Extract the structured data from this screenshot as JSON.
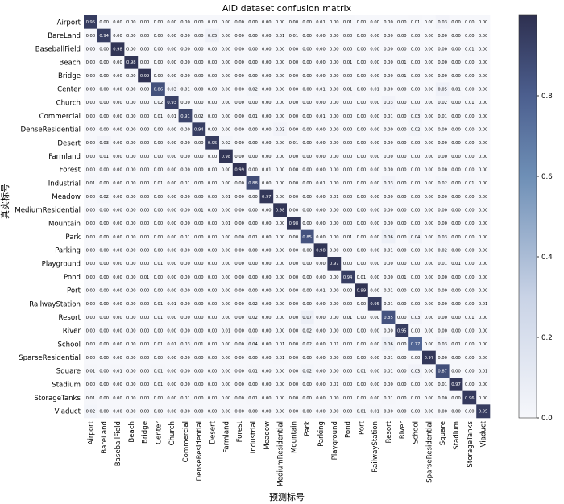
{
  "chart_data": {
    "type": "heatmap",
    "title": "AID dataset confusion matrix",
    "xlabel": "预测标号",
    "ylabel": "真实标号",
    "labels": [
      "Airport",
      "BareLand",
      "BaseballField",
      "Beach",
      "Bridge",
      "Center",
      "Church",
      "Commercial",
      "DenseResidential",
      "Desert",
      "Farmland",
      "Forest",
      "Industrial",
      "Meadow",
      "MediumResidential",
      "Mountain",
      "Park",
      "Parking",
      "Playground",
      "Pond",
      "Port",
      "RailwayStation",
      "Resort",
      "River",
      "School",
      "SparseResidential",
      "Square",
      "Stadium",
      "StorageTanks",
      "Viaduct"
    ],
    "matrix": [
      [
        "0.95",
        "0.00",
        "0.00",
        "0.00",
        "0.00",
        "0.00",
        "0.00",
        "0.00",
        "0.00",
        "0.00",
        "0.00",
        "0.00",
        "0.00",
        "0.00",
        "0.00",
        "0.00",
        "0.00",
        "0.01",
        "0.00",
        "0.01",
        "0.00",
        "0.00",
        "0.00",
        "0.00",
        "0.01",
        "0.00",
        "0.03",
        "0.00",
        "0.00",
        "0.00"
      ],
      [
        "0.00",
        "0.94",
        "0.00",
        "0.00",
        "0.00",
        "0.00",
        "0.00",
        "0.00",
        "0.00",
        "0.05",
        "0.00",
        "0.00",
        "0.00",
        "0.00",
        "0.01",
        "0.01",
        "0.00",
        "0.00",
        "0.00",
        "0.00",
        "0.00",
        "0.00",
        "0.00",
        "0.00",
        "0.00",
        "0.00",
        "0.00",
        "0.00",
        "0.00",
        "0.00"
      ],
      [
        "0.00",
        "0.00",
        "0.98",
        "0.00",
        "0.00",
        "0.00",
        "0.00",
        "0.00",
        "0.00",
        "0.00",
        "0.00",
        "0.00",
        "0.00",
        "0.00",
        "0.00",
        "0.00",
        "0.00",
        "0.00",
        "0.00",
        "0.00",
        "0.00",
        "0.00",
        "0.00",
        "0.00",
        "0.00",
        "0.00",
        "0.00",
        "0.00",
        "0.01",
        "0.00"
      ],
      [
        "0.00",
        "0.00",
        "0.00",
        "0.98",
        "0.00",
        "0.00",
        "0.00",
        "0.00",
        "0.00",
        "0.00",
        "0.00",
        "0.00",
        "0.00",
        "0.00",
        "0.00",
        "0.00",
        "0.00",
        "0.00",
        "0.00",
        "0.01",
        "0.00",
        "0.00",
        "0.00",
        "0.01",
        "0.00",
        "0.00",
        "0.00",
        "0.00",
        "0.00",
        "0.00"
      ],
      [
        "0.00",
        "0.00",
        "0.00",
        "0.00",
        "0.99",
        "0.00",
        "0.00",
        "0.00",
        "0.00",
        "0.00",
        "0.00",
        "0.00",
        "0.00",
        "0.00",
        "0.00",
        "0.00",
        "0.00",
        "0.00",
        "0.00",
        "0.00",
        "0.00",
        "0.00",
        "0.00",
        "0.01",
        "0.00",
        "0.00",
        "0.00",
        "0.00",
        "0.00",
        "0.00"
      ],
      [
        "0.00",
        "0.00",
        "0.00",
        "0.00",
        "0.00",
        "0.86",
        "0.03",
        "0.01",
        "0.00",
        "0.00",
        "0.00",
        "0.00",
        "0.02",
        "0.00",
        "0.00",
        "0.00",
        "0.00",
        "0.01",
        "0.00",
        "0.01",
        "0.00",
        "0.01",
        "0.00",
        "0.00",
        "0.00",
        "0.00",
        "0.05",
        "0.01",
        "0.00",
        "0.00"
      ],
      [
        "0.00",
        "0.00",
        "0.00",
        "0.00",
        "0.00",
        "0.02",
        "0.93",
        "0.00",
        "0.00",
        "0.00",
        "0.00",
        "0.00",
        "0.00",
        "0.00",
        "0.00",
        "0.00",
        "0.00",
        "0.00",
        "0.00",
        "0.00",
        "0.00",
        "0.00",
        "0.03",
        "0.00",
        "0.00",
        "0.00",
        "0.02",
        "0.00",
        "0.01",
        "0.00"
      ],
      [
        "0.00",
        "0.00",
        "0.00",
        "0.00",
        "0.00",
        "0.01",
        "0.01",
        "0.91",
        "0.02",
        "0.00",
        "0.00",
        "0.00",
        "0.01",
        "0.00",
        "0.00",
        "0.00",
        "0.00",
        "0.01",
        "0.00",
        "0.00",
        "0.00",
        "0.00",
        "0.01",
        "0.00",
        "0.03",
        "0.00",
        "0.01",
        "0.00",
        "0.00",
        "0.00"
      ],
      [
        "0.00",
        "0.00",
        "0.00",
        "0.00",
        "0.00",
        "0.00",
        "0.00",
        "0.00",
        "0.94",
        "0.00",
        "0.00",
        "0.00",
        "0.00",
        "0.00",
        "0.03",
        "0.00",
        "0.00",
        "0.00",
        "0.00",
        "0.00",
        "0.00",
        "0.00",
        "0.00",
        "0.00",
        "0.02",
        "0.00",
        "0.00",
        "0.00",
        "0.00",
        "0.00"
      ],
      [
        "0.00",
        "0.03",
        "0.00",
        "0.00",
        "0.00",
        "0.00",
        "0.00",
        "0.00",
        "0.00",
        "0.95",
        "0.02",
        "0.00",
        "0.00",
        "0.00",
        "0.00",
        "0.01",
        "0.00",
        "0.00",
        "0.00",
        "0.00",
        "0.00",
        "0.00",
        "0.00",
        "0.00",
        "0.00",
        "0.00",
        "0.00",
        "0.00",
        "0.00",
        "0.00"
      ],
      [
        "0.00",
        "0.01",
        "0.00",
        "0.00",
        "0.00",
        "0.00",
        "0.00",
        "0.00",
        "0.00",
        "0.00",
        "0.98",
        "0.00",
        "0.00",
        "0.00",
        "0.00",
        "0.00",
        "0.00",
        "0.00",
        "0.00",
        "0.00",
        "0.00",
        "0.00",
        "0.00",
        "0.00",
        "0.00",
        "0.00",
        "0.00",
        "0.00",
        "0.00",
        "0.00"
      ],
      [
        "0.00",
        "0.00",
        "0.00",
        "0.00",
        "0.00",
        "0.00",
        "0.00",
        "0.00",
        "0.00",
        "0.00",
        "0.00",
        "0.99",
        "0.00",
        "0.01",
        "0.00",
        "0.00",
        "0.00",
        "0.00",
        "0.00",
        "0.00",
        "0.00",
        "0.00",
        "0.00",
        "0.00",
        "0.00",
        "0.00",
        "0.00",
        "0.00",
        "0.00",
        "0.00"
      ],
      [
        "0.01",
        "0.00",
        "0.00",
        "0.00",
        "0.00",
        "0.01",
        "0.00",
        "0.01",
        "0.00",
        "0.00",
        "0.00",
        "0.00",
        "0.88",
        "0.00",
        "0.00",
        "0.00",
        "0.00",
        "0.01",
        "0.00",
        "0.00",
        "0.00",
        "0.00",
        "0.03",
        "0.00",
        "0.00",
        "0.00",
        "0.02",
        "0.00",
        "0.01",
        "0.00"
      ],
      [
        "0.00",
        "0.02",
        "0.00",
        "0.00",
        "0.00",
        "0.00",
        "0.00",
        "0.00",
        "0.00",
        "0.00",
        "0.01",
        "0.00",
        "0.00",
        "0.97",
        "0.00",
        "0.00",
        "0.00",
        "0.00",
        "0.01",
        "0.00",
        "0.00",
        "0.00",
        "0.00",
        "0.00",
        "0.00",
        "0.00",
        "0.00",
        "0.00",
        "0.00",
        "0.00"
      ],
      [
        "0.00",
        "0.00",
        "0.00",
        "0.00",
        "0.00",
        "0.00",
        "0.00",
        "0.00",
        "0.01",
        "0.00",
        "0.00",
        "0.00",
        "0.00",
        "0.00",
        "0.98",
        "0.00",
        "0.00",
        "0.00",
        "0.00",
        "0.00",
        "0.00",
        "0.00",
        "0.00",
        "0.00",
        "0.00",
        "0.00",
        "0.00",
        "0.00",
        "0.00",
        "0.00"
      ],
      [
        "0.00",
        "0.00",
        "0.00",
        "0.00",
        "0.00",
        "0.00",
        "0.00",
        "0.00",
        "0.00",
        "0.00",
        "0.01",
        "0.00",
        "0.00",
        "0.00",
        "0.00",
        "0.98",
        "0.00",
        "0.00",
        "0.00",
        "0.00",
        "0.00",
        "0.00",
        "0.00",
        "0.00",
        "0.00",
        "0.00",
        "0.00",
        "0.00",
        "0.00",
        "0.00"
      ],
      [
        "0.00",
        "0.00",
        "0.00",
        "0.00",
        "0.00",
        "0.00",
        "0.00",
        "0.01",
        "0.00",
        "0.00",
        "0.00",
        "0.00",
        "0.01",
        "0.00",
        "0.00",
        "0.00",
        "0.85",
        "0.00",
        "0.00",
        "0.01",
        "0.00",
        "0.00",
        "0.06",
        "0.00",
        "0.04",
        "0.00",
        "0.03",
        "0.00",
        "0.00",
        "0.00"
      ],
      [
        "0.00",
        "0.00",
        "0.00",
        "0.00",
        "0.00",
        "0.00",
        "0.00",
        "0.00",
        "0.00",
        "0.00",
        "0.00",
        "0.00",
        "0.00",
        "0.00",
        "0.00",
        "0.00",
        "0.00",
        "0.98",
        "0.00",
        "0.00",
        "0.00",
        "0.00",
        "0.01",
        "0.00",
        "0.00",
        "0.00",
        "0.02",
        "0.00",
        "0.00",
        "0.00"
      ],
      [
        "0.00",
        "0.00",
        "0.00",
        "0.00",
        "0.00",
        "0.01",
        "0.00",
        "0.00",
        "0.00",
        "0.00",
        "0.00",
        "0.00",
        "0.00",
        "0.00",
        "0.00",
        "0.00",
        "0.00",
        "0.00",
        "0.97",
        "0.00",
        "0.00",
        "0.00",
        "0.00",
        "0.00",
        "0.00",
        "0.00",
        "0.01",
        "0.01",
        "0.00",
        "0.00"
      ],
      [
        "0.00",
        "0.00",
        "0.00",
        "0.00",
        "0.01",
        "0.00",
        "0.00",
        "0.00",
        "0.00",
        "0.00",
        "0.00",
        "0.00",
        "0.00",
        "0.00",
        "0.00",
        "0.00",
        "0.00",
        "0.00",
        "0.00",
        "0.94",
        "0.01",
        "0.00",
        "0.00",
        "0.01",
        "0.00",
        "0.00",
        "0.00",
        "0.00",
        "0.00",
        "0.00"
      ],
      [
        "0.00",
        "0.00",
        "0.00",
        "0.00",
        "0.00",
        "0.00",
        "0.00",
        "0.00",
        "0.00",
        "0.00",
        "0.00",
        "0.00",
        "0.00",
        "0.00",
        "0.00",
        "0.00",
        "0.00",
        "0.01",
        "0.00",
        "0.00",
        "0.99",
        "0.00",
        "0.01",
        "0.00",
        "0.00",
        "0.00",
        "0.00",
        "0.00",
        "0.00",
        "0.00"
      ],
      [
        "0.00",
        "0.00",
        "0.00",
        "0.00",
        "0.00",
        "0.01",
        "0.01",
        "0.00",
        "0.00",
        "0.00",
        "0.00",
        "0.00",
        "0.02",
        "0.00",
        "0.00",
        "0.00",
        "0.00",
        "0.00",
        "0.00",
        "0.00",
        "0.00",
        "0.95",
        "0.01",
        "0.00",
        "0.00",
        "0.00",
        "0.00",
        "0.00",
        "0.00",
        "0.01"
      ],
      [
        "0.00",
        "0.00",
        "0.00",
        "0.00",
        "0.00",
        "0.01",
        "0.00",
        "0.00",
        "0.00",
        "0.00",
        "0.00",
        "0.00",
        "0.02",
        "0.00",
        "0.00",
        "0.00",
        "0.07",
        "0.00",
        "0.00",
        "0.01",
        "0.00",
        "0.00",
        "0.85",
        "0.00",
        "0.03",
        "0.00",
        "0.00",
        "0.00",
        "0.01",
        "0.00"
      ],
      [
        "0.00",
        "0.00",
        "0.00",
        "0.00",
        "0.00",
        "0.00",
        "0.00",
        "0.00",
        "0.00",
        "0.00",
        "0.01",
        "0.00",
        "0.00",
        "0.00",
        "0.00",
        "0.00",
        "0.02",
        "0.00",
        "0.00",
        "0.00",
        "0.00",
        "0.00",
        "0.00",
        "0.95",
        "0.00",
        "0.00",
        "0.00",
        "0.00",
        "0.00",
        "0.00"
      ],
      [
        "0.00",
        "0.00",
        "0.00",
        "0.00",
        "0.00",
        "0.01",
        "0.01",
        "0.03",
        "0.01",
        "0.00",
        "0.00",
        "0.00",
        "0.04",
        "0.00",
        "0.01",
        "0.00",
        "0.02",
        "0.00",
        "0.01",
        "0.00",
        "0.00",
        "0.00",
        "0.06",
        "0.00",
        "0.77",
        "0.00",
        "0.03",
        "0.01",
        "0.00",
        "0.00"
      ],
      [
        "0.00",
        "0.00",
        "0.00",
        "0.00",
        "0.00",
        "0.00",
        "0.00",
        "0.00",
        "0.00",
        "0.00",
        "0.00",
        "0.00",
        "0.00",
        "0.00",
        "0.01",
        "0.00",
        "0.00",
        "0.00",
        "0.00",
        "0.00",
        "0.00",
        "0.00",
        "0.01",
        "0.00",
        "0.00",
        "0.97",
        "0.00",
        "0.00",
        "0.00",
        "0.00"
      ],
      [
        "0.01",
        "0.00",
        "0.01",
        "0.00",
        "0.00",
        "0.01",
        "0.00",
        "0.00",
        "0.00",
        "0.00",
        "0.00",
        "0.00",
        "0.01",
        "0.00",
        "0.00",
        "0.00",
        "0.02",
        "0.00",
        "0.00",
        "0.00",
        "0.01",
        "0.00",
        "0.01",
        "0.00",
        "0.03",
        "0.00",
        "0.87",
        "0.00",
        "0.00",
        "0.01"
      ],
      [
        "0.00",
        "0.00",
        "0.00",
        "0.00",
        "0.00",
        "0.01",
        "0.00",
        "0.00",
        "0.00",
        "0.00",
        "0.00",
        "0.00",
        "0.00",
        "0.00",
        "0.00",
        "0.00",
        "0.00",
        "0.00",
        "0.01",
        "0.00",
        "0.00",
        "0.00",
        "0.00",
        "0.00",
        "0.00",
        "0.00",
        "0.01",
        "0.97",
        "0.00",
        "0.00"
      ],
      [
        "0.01",
        "0.00",
        "0.00",
        "0.00",
        "0.00",
        "0.00",
        "0.00",
        "0.01",
        "0.00",
        "0.00",
        "0.00",
        "0.00",
        "0.01",
        "0.00",
        "0.00",
        "0.00",
        "0.00",
        "0.00",
        "0.00",
        "0.00",
        "0.00",
        "0.00",
        "0.01",
        "0.00",
        "0.00",
        "0.00",
        "0.00",
        "0.00",
        "0.96",
        "0.00"
      ],
      [
        "0.02",
        "0.00",
        "0.00",
        "0.00",
        "0.00",
        "0.00",
        "0.00",
        "0.00",
        "0.00",
        "0.00",
        "0.00",
        "0.00",
        "0.00",
        "0.00",
        "0.00",
        "0.00",
        "0.00",
        "0.00",
        "0.00",
        "0.00",
        "0.01",
        "0.01",
        "0.00",
        "0.00",
        "0.00",
        "0.00",
        "0.00",
        "0.00",
        "0.00",
        "0.95"
      ]
    ],
    "colorbar": {
      "range": [
        0,
        1
      ],
      "ticks": [
        "0.0",
        "0.2",
        "0.4",
        "0.6",
        "0.8"
      ],
      "color_low": "#f6f7fb",
      "color_high": "#2e3050"
    },
    "grid": false
  }
}
